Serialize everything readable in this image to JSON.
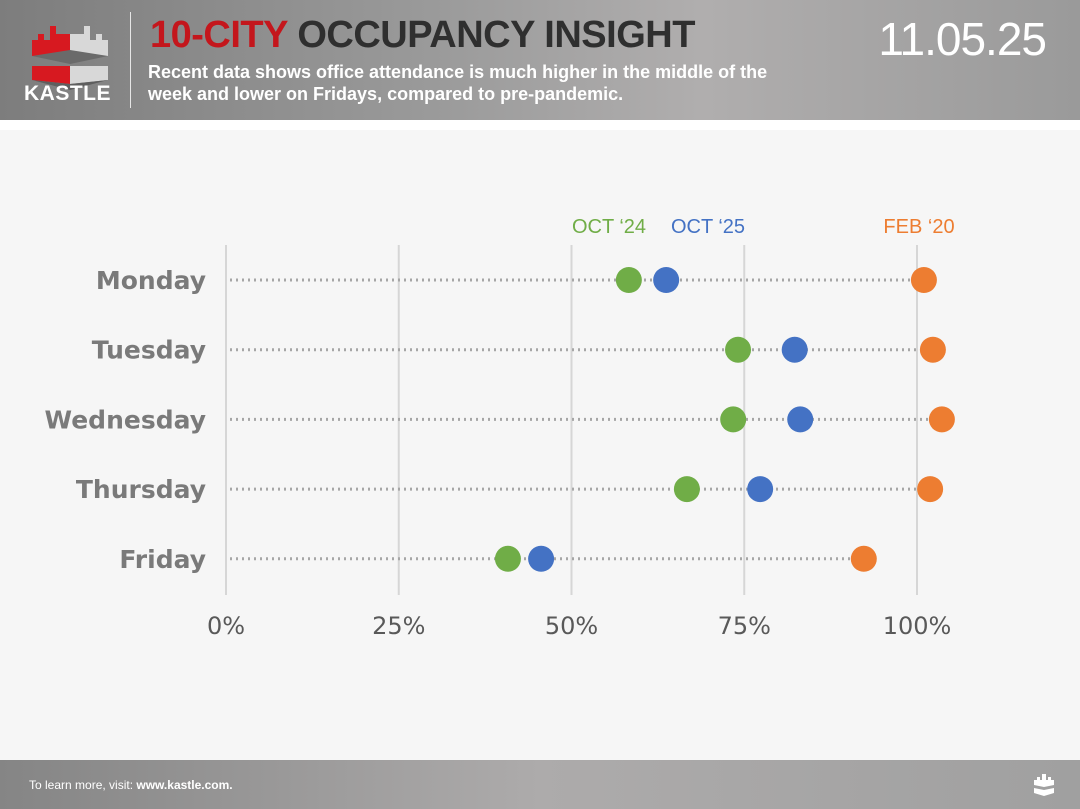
{
  "header": {
    "logo_text": "KASTLE",
    "title_highlight": "10-CITY",
    "title_rest": " OCCUPANCY INSIGHT",
    "subtitle": "Recent data shows office attendance is much higher in the middle of the week and lower on Fridays, compared to pre-pandemic.",
    "date": "11.05.25"
  },
  "footer": {
    "text": "To learn more, visit: ",
    "link": "www.kastle.com."
  },
  "chart_data": {
    "type": "scatter",
    "subtype": "dot-plot",
    "title": "",
    "categories": [
      "Monday",
      "Tuesday",
      "Wednesday",
      "Thursday",
      "Friday"
    ],
    "xlim": [
      0,
      100
    ],
    "x_ticks": [
      "0%",
      "25%",
      "50%",
      "75%",
      "100%"
    ],
    "x_tick_values": [
      0,
      25,
      50,
      75,
      100
    ],
    "grid": "vertical",
    "legend_placement": "top, above points",
    "series": [
      {
        "name": "OCT ‘24",
        "color": "#70ad47",
        "values": [
          58.3,
          74.1,
          73.4,
          66.7,
          40.8
        ]
      },
      {
        "name": "OCT ‘25",
        "color": "#4472c4",
        "values": [
          63.7,
          82.3,
          83.1,
          77.3,
          45.6
        ]
      },
      {
        "name": "FEB ‘20",
        "color": "#ed7d31",
        "values": [
          101.0,
          102.3,
          103.6,
          101.9,
          92.3
        ]
      }
    ]
  }
}
